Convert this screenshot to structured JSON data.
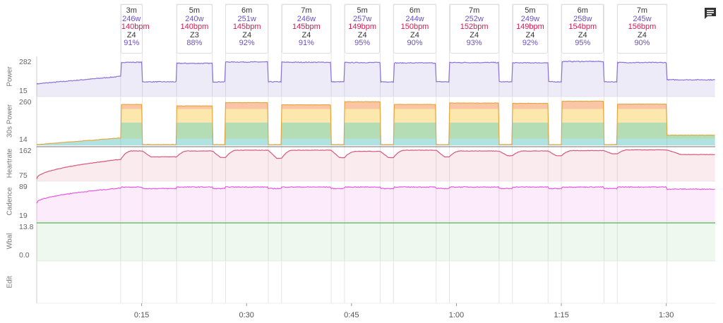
{
  "chart_data": {
    "type": "line",
    "x_unit": "minutes",
    "x_range": [
      0,
      97
    ],
    "x_ticks": [
      {
        "value": 15,
        "label": "0:15"
      },
      {
        "value": 30,
        "label": "0:30"
      },
      {
        "value": 45,
        "label": "0:45"
      },
      {
        "value": 60,
        "label": "1:00"
      },
      {
        "value": 75,
        "label": "1:15"
      },
      {
        "value": 90,
        "label": "1:30"
      }
    ],
    "panels": [
      {
        "name": "Power",
        "label": "Power",
        "ymin_label": "15",
        "ymax_label": "282",
        "yrange": [
          15,
          282
        ],
        "color": "#8a72d8"
      },
      {
        "name": "30s Power",
        "label": "30s Power",
        "ymin_label": "14",
        "ymax_label": "260",
        "yrange": [
          14,
          260
        ],
        "color": "#3fae5a"
      },
      {
        "name": "Heartrate",
        "label": "Heartrate",
        "ymin_label": "75",
        "ymax_label": "162",
        "yrange": [
          75,
          162
        ],
        "color": "#d9577a"
      },
      {
        "name": "Cadence",
        "label": "Cadence",
        "ymin_label": "19",
        "ymax_label": "89",
        "yrange": [
          19,
          89
        ],
        "color": "#e85ae0"
      },
      {
        "name": "Wbal",
        "label": "Wbal",
        "ymin_label": "0.0",
        "ymax_label": "13.8",
        "yrange": [
          0,
          13.8
        ],
        "color": "#4caf50"
      },
      {
        "name": "Edit",
        "label": "Edit"
      }
    ],
    "intervals": [
      {
        "start": 12.0,
        "end": 15.1,
        "duration": "3m",
        "power": "246w",
        "hr": "140bpm",
        "zone": "Z4",
        "pct": "91%"
      },
      {
        "start": 20.0,
        "end": 25.1,
        "duration": "5m",
        "power": "240w",
        "hr": "140bpm",
        "zone": "Z3",
        "pct": "88%"
      },
      {
        "start": 27.0,
        "end": 33.1,
        "duration": "6m",
        "power": "251w",
        "hr": "145bpm",
        "zone": "Z4",
        "pct": "92%"
      },
      {
        "start": 35.0,
        "end": 42.1,
        "duration": "7m",
        "power": "246w",
        "hr": "145bpm",
        "zone": "Z4",
        "pct": "91%"
      },
      {
        "start": 44.0,
        "end": 49.1,
        "duration": "5m",
        "power": "257w",
        "hr": "149bpm",
        "zone": "Z4",
        "pct": "95%"
      },
      {
        "start": 51.0,
        "end": 57.1,
        "duration": "6m",
        "power": "244w",
        "hr": "150bpm",
        "zone": "Z4",
        "pct": "90%"
      },
      {
        "start": 59.0,
        "end": 66.1,
        "duration": "7m",
        "power": "252w",
        "hr": "152bpm",
        "zone": "Z4",
        "pct": "93%"
      },
      {
        "start": 68.0,
        "end": 73.1,
        "duration": "5m",
        "power": "249w",
        "hr": "149bpm",
        "zone": "Z4",
        "pct": "92%"
      },
      {
        "start": 75.0,
        "end": 81.1,
        "duration": "6m",
        "power": "258w",
        "hr": "154bpm",
        "zone": "Z4",
        "pct": "95%"
      },
      {
        "start": 83.0,
        "end": 90.1,
        "duration": "7m",
        "power": "245w",
        "hr": "156bpm",
        "zone": "Z4",
        "pct": "90%"
      }
    ],
    "series": {
      "power": {
        "start": 110,
        "warmup_end": 165,
        "rest": 125,
        "work": [
          270,
          262,
          272,
          270,
          268,
          265,
          268,
          266,
          276,
          268
        ],
        "end": 140
      },
      "power30s": {
        "start": 18,
        "warmup_end": 55,
        "rest": 18,
        "work": [
          240,
          232,
          250,
          238,
          255,
          240,
          248,
          246,
          258,
          242
        ],
        "end": 70
      },
      "heartrate": {
        "start": 82,
        "warmup_end": 135,
        "peaks": [
          158,
          158,
          160,
          160,
          157,
          160,
          158,
          158,
          159,
          161
        ],
        "troughs": [
          118,
          142,
          140,
          138,
          140,
          140,
          142,
          145,
          145,
          150
        ],
        "end": 148
      },
      "cadence": {
        "start": 55,
        "warmup_end": 84,
        "work": 86,
        "rest": 80,
        "end": 82
      },
      "wbal": {
        "value": 13.8
      }
    },
    "grid": false,
    "legend": "none"
  },
  "toolbar": {
    "chat_icon": "chat-comment-icon"
  }
}
